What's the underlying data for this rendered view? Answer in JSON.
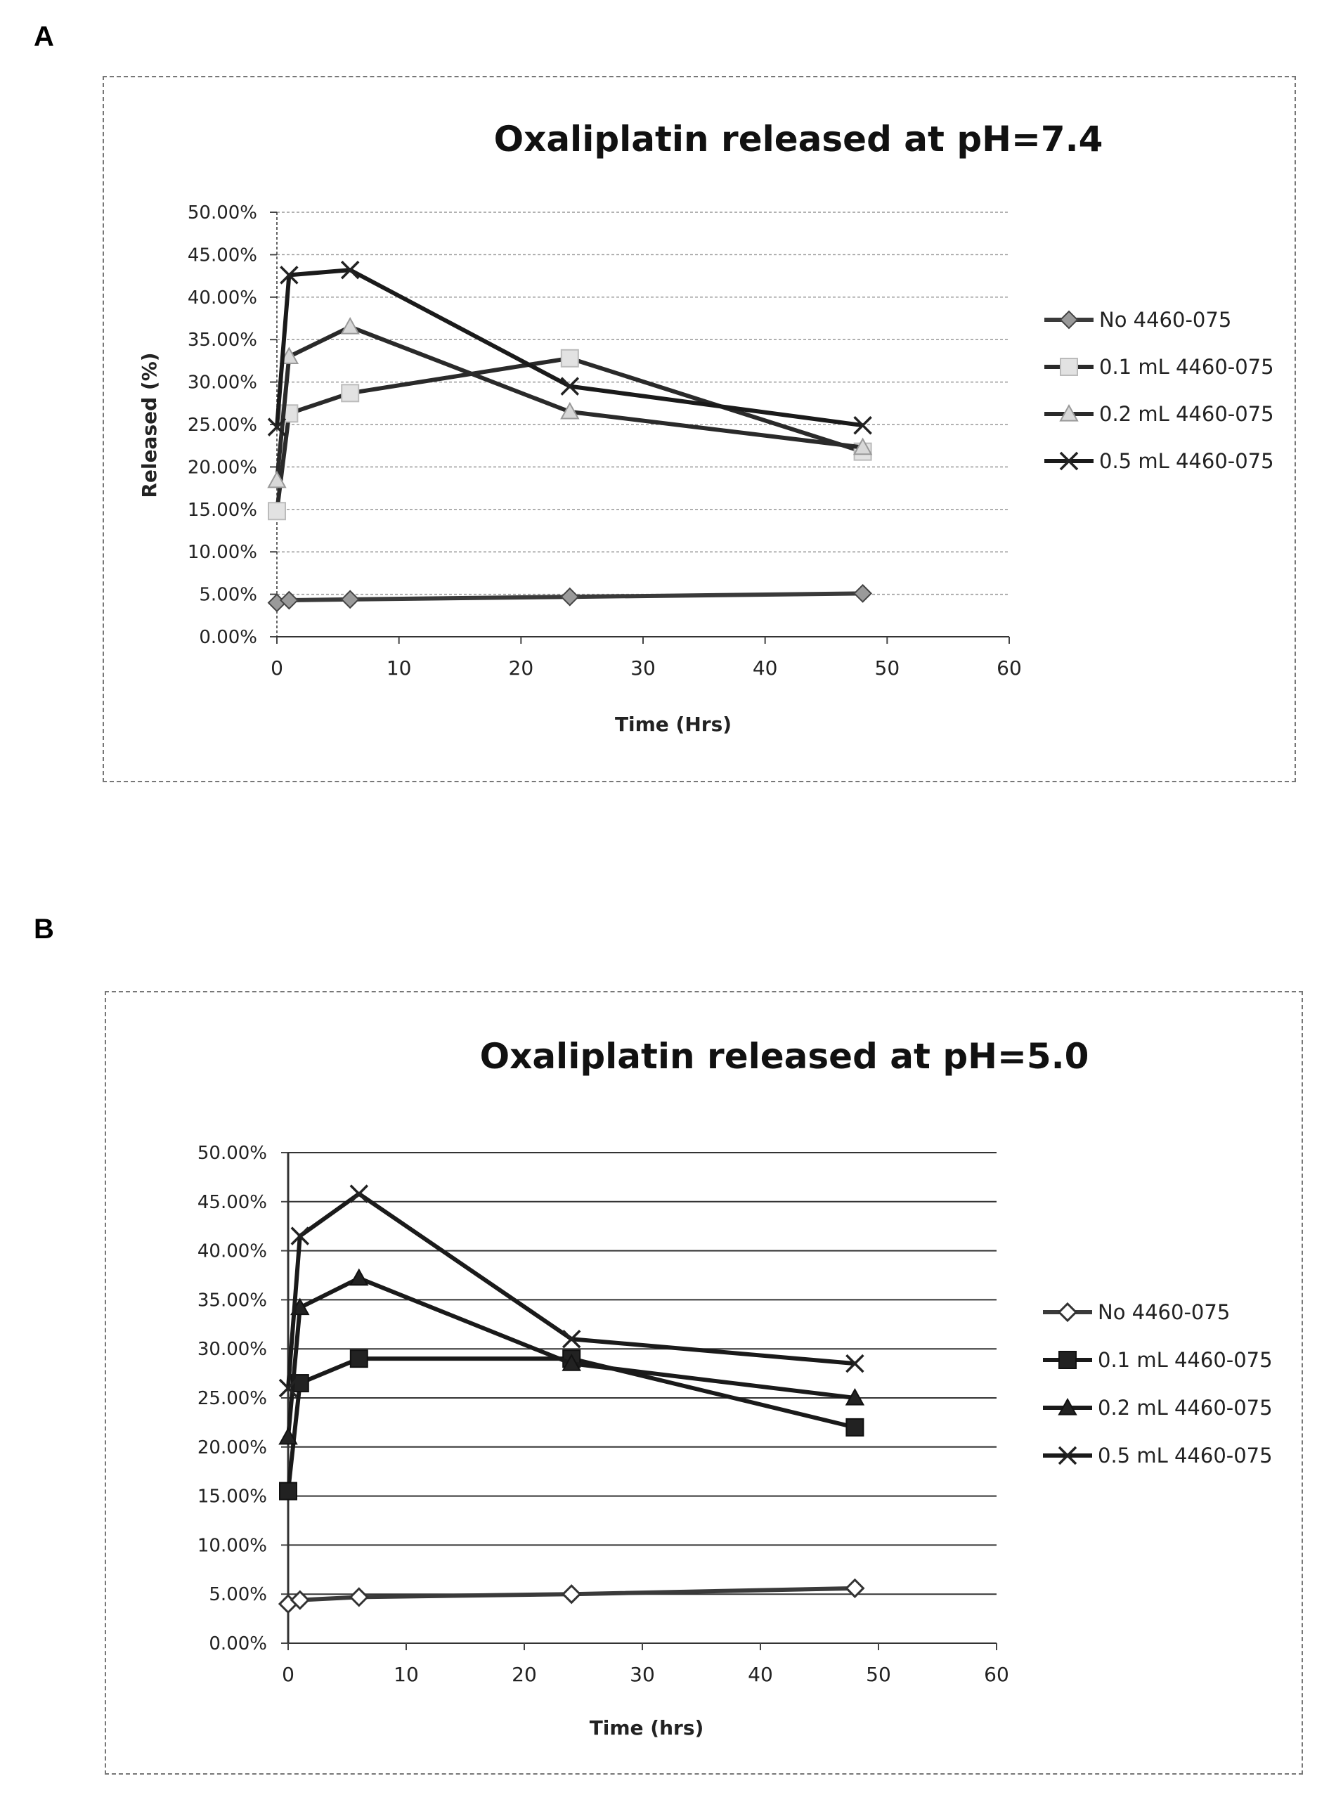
{
  "panels": [
    {
      "label": "A"
    },
    {
      "label": "B"
    }
  ],
  "chart_data": [
    {
      "type": "line",
      "title": "Oxaliplatin released at pH=7.4",
      "xlabel": "Time (Hrs)",
      "ylabel": "Released (%)",
      "xlim": [
        0,
        60
      ],
      "ylim": [
        0,
        0.5
      ],
      "xticks": [
        "0",
        "10",
        "20",
        "30",
        "40",
        "50",
        "60"
      ],
      "yticks": [
        "0.00%",
        "5.00%",
        "10.00%",
        "15.00%",
        "20.00%",
        "25.00%",
        "30.00%",
        "35.00%",
        "40.00%",
        "45.00%",
        "50.00%"
      ],
      "grid": true,
      "legend_position": "right",
      "x": [
        0,
        1,
        6,
        24,
        48
      ],
      "series": [
        {
          "name": "No 4460-075",
          "marker": "diamond-gray",
          "values": [
            0.04,
            0.043,
            0.044,
            0.047,
            0.051
          ]
        },
        {
          "name": "0.1 mL 4460-075",
          "marker": "square-light",
          "values": [
            0.148,
            0.263,
            0.287,
            0.328,
            0.218
          ]
        },
        {
          "name": "0.2 mL 4460-075",
          "marker": "triangle-light",
          "values": [
            0.184,
            0.33,
            0.365,
            0.265,
            0.223
          ]
        },
        {
          "name": "0.5 mL 4460-075",
          "marker": "x",
          "values": [
            0.247,
            0.426,
            0.432,
            0.295,
            0.249
          ]
        }
      ]
    },
    {
      "type": "line",
      "title": "Oxaliplatin released at pH=5.0",
      "xlabel": "Time (hrs)",
      "ylabel": "",
      "xlim": [
        0,
        60
      ],
      "ylim": [
        0,
        0.5
      ],
      "xticks": [
        "0",
        "10",
        "20",
        "30",
        "40",
        "50",
        "60"
      ],
      "yticks": [
        "0.00%",
        "5.00%",
        "10.00%",
        "15.00%",
        "20.00%",
        "25.00%",
        "30.00%",
        "35.00%",
        "40.00%",
        "45.00%",
        "50.00%"
      ],
      "grid": true,
      "legend_position": "right",
      "x": [
        0,
        1,
        6,
        24,
        48
      ],
      "series": [
        {
          "name": "No 4460-075",
          "marker": "diamond-open",
          "values": [
            0.04,
            0.044,
            0.047,
            0.05,
            0.056
          ]
        },
        {
          "name": "0.1 mL 4460-075",
          "marker": "square-filled",
          "values": [
            0.155,
            0.265,
            0.29,
            0.29,
            0.22
          ]
        },
        {
          "name": "0.2 mL 4460-075",
          "marker": "triangle-filled",
          "values": [
            0.21,
            0.342,
            0.372,
            0.285,
            0.25
          ]
        },
        {
          "name": "0.5 mL 4460-075",
          "marker": "x",
          "values": [
            0.26,
            0.415,
            0.458,
            0.31,
            0.285
          ]
        }
      ]
    }
  ]
}
